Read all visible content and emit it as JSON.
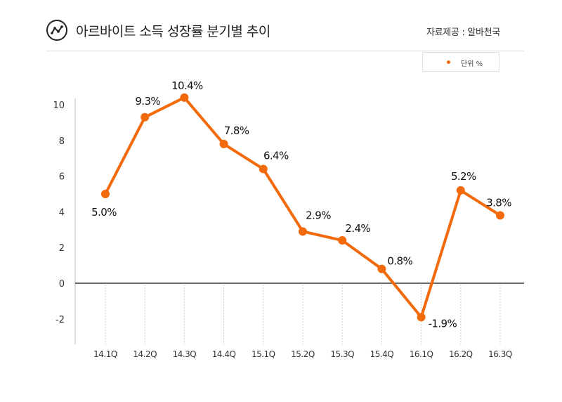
{
  "header": {
    "title": "아르바이트 소득 성장률 분기별 추이",
    "source": "자료제공 : 알바천국",
    "logo_icon": "trend-line-icon"
  },
  "legend": {
    "label": "단위 %"
  },
  "colors": {
    "series": "#f26a0b",
    "zero_line": "#333333",
    "grid": "#bbbbbb"
  },
  "chart_data": {
    "type": "line",
    "title": "아르바이트 소득 성장률 분기별 추이",
    "xlabel": "",
    "ylabel": "",
    "categories": [
      "14.1Q",
      "14.2Q",
      "14.3Q",
      "14.4Q",
      "15.1Q",
      "15.2Q",
      "15.3Q",
      "15.4Q",
      "16.1Q",
      "16.2Q",
      "16.3Q"
    ],
    "series": [
      {
        "values": [
          5.0,
          9.3,
          10.4,
          7.8,
          6.4,
          2.9,
          2.4,
          0.8,
          -1.9,
          5.2,
          3.8
        ],
        "labels": [
          "5.0%",
          "9.3%",
          "10.4%",
          "7.8%",
          "6.4%",
          "2.9%",
          "2.4%",
          "0.8%",
          "-1.9%",
          "5.2%",
          "3.8%"
        ]
      }
    ],
    "y_ticks": [
      "10",
      "8",
      "6",
      "4",
      "2",
      "0",
      "-2"
    ],
    "ylim": [
      -3,
      11
    ],
    "grid": "vertical dotted lines at categories"
  }
}
